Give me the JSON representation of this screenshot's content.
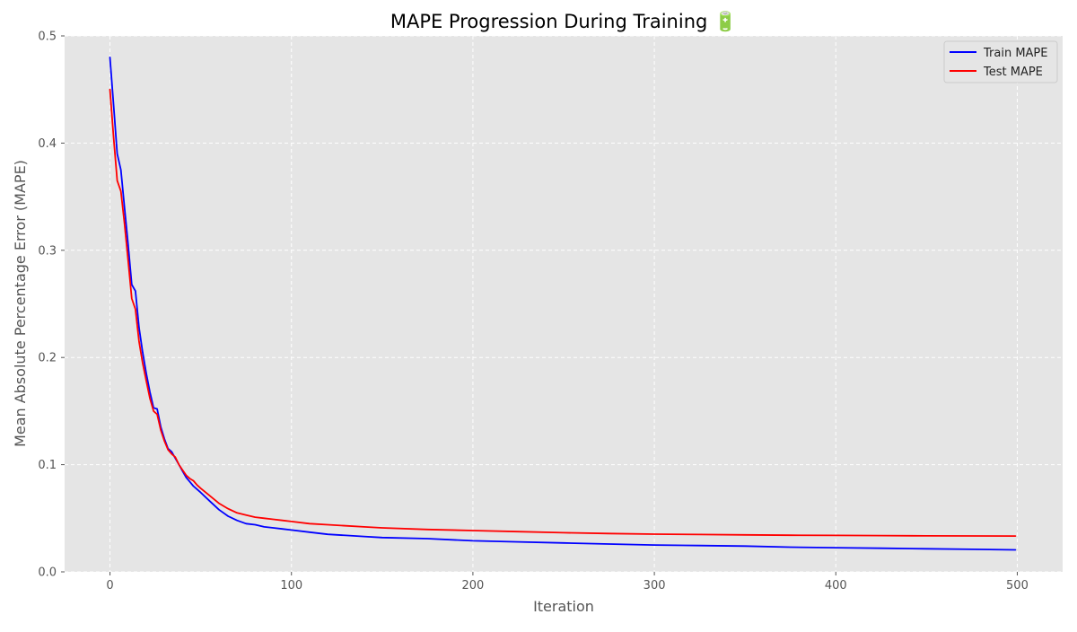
{
  "chart_data": {
    "type": "line",
    "title": "MAPE Progression During Training 🔋",
    "xlabel": "Iteration",
    "ylabel": "Mean Absolute Percentage Error (MAPE)",
    "xlim": [
      -25,
      525
    ],
    "ylim": [
      0,
      0.5
    ],
    "xticks": [
      0,
      100,
      200,
      300,
      400,
      500
    ],
    "yticks": [
      0.0,
      0.1,
      0.2,
      0.3,
      0.4,
      0.5
    ],
    "xtick_labels": [
      "0",
      "100",
      "200",
      "300",
      "400",
      "500"
    ],
    "ytick_labels": [
      "0.0",
      "0.1",
      "0.2",
      "0.3",
      "0.4",
      "0.5"
    ],
    "grid": true,
    "legend": "top-right",
    "background": "#e5e5e5",
    "series": [
      {
        "name": "Train MAPE",
        "color": "#0000ff",
        "x": [
          0,
          2,
          4,
          6,
          8,
          10,
          12,
          14,
          16,
          18,
          20,
          22,
          24,
          26,
          28,
          30,
          32,
          34,
          36,
          38,
          40,
          42,
          44,
          46,
          48,
          50,
          55,
          60,
          65,
          70,
          75,
          80,
          85,
          90,
          95,
          100,
          110,
          120,
          130,
          140,
          150,
          175,
          200,
          225,
          250,
          275,
          300,
          325,
          350,
          375,
          400,
          425,
          450,
          475,
          499
        ],
        "y": [
          0.48,
          0.435,
          0.39,
          0.375,
          0.34,
          0.305,
          0.268,
          0.262,
          0.228,
          0.205,
          0.185,
          0.168,
          0.153,
          0.152,
          0.135,
          0.124,
          0.115,
          0.112,
          0.106,
          0.1,
          0.094,
          0.088,
          0.084,
          0.08,
          0.077,
          0.074,
          0.066,
          0.058,
          0.052,
          0.048,
          0.045,
          0.044,
          0.042,
          0.041,
          0.04,
          0.039,
          0.037,
          0.035,
          0.034,
          0.033,
          0.032,
          0.031,
          0.029,
          0.028,
          0.027,
          0.026,
          0.025,
          0.0245,
          0.024,
          0.023,
          0.0225,
          0.022,
          0.0215,
          0.021,
          0.0205
        ]
      },
      {
        "name": "Test MAPE",
        "color": "#ff0000",
        "x": [
          0,
          2,
          4,
          6,
          8,
          10,
          12,
          14,
          16,
          18,
          20,
          22,
          24,
          26,
          28,
          30,
          32,
          34,
          36,
          38,
          40,
          42,
          44,
          46,
          48,
          50,
          55,
          60,
          65,
          70,
          75,
          80,
          85,
          90,
          95,
          100,
          110,
          120,
          130,
          140,
          150,
          175,
          200,
          225,
          250,
          275,
          300,
          325,
          350,
          375,
          400,
          425,
          450,
          475,
          499
        ],
        "y": [
          0.45,
          0.405,
          0.365,
          0.355,
          0.325,
          0.29,
          0.255,
          0.245,
          0.215,
          0.195,
          0.178,
          0.162,
          0.15,
          0.147,
          0.132,
          0.122,
          0.114,
          0.11,
          0.107,
          0.1,
          0.095,
          0.09,
          0.087,
          0.085,
          0.081,
          0.078,
          0.071,
          0.064,
          0.059,
          0.055,
          0.053,
          0.051,
          0.05,
          0.049,
          0.048,
          0.047,
          0.045,
          0.044,
          0.043,
          0.042,
          0.041,
          0.0395,
          0.0385,
          0.0375,
          0.0365,
          0.0358,
          0.0352,
          0.0348,
          0.0345,
          0.0342,
          0.034,
          0.0338,
          0.0336,
          0.0335,
          0.0334
        ]
      }
    ]
  }
}
